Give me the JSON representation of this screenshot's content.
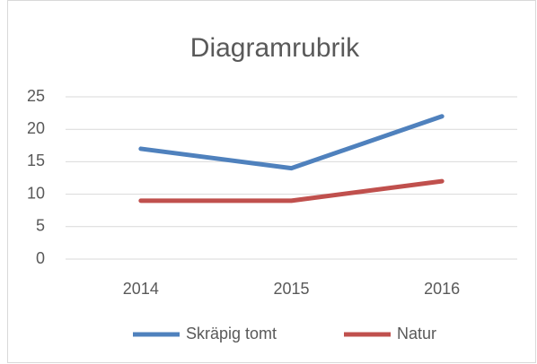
{
  "chart_data": {
    "type": "line",
    "title": "Diagramrubrik",
    "categories": [
      "2014",
      "2015",
      "2016"
    ],
    "series": [
      {
        "name": "Skräpig tomt",
        "color": "#4f81bd",
        "values": [
          17,
          14,
          22
        ]
      },
      {
        "name": "Natur",
        "color": "#c0504d",
        "values": [
          9,
          9,
          12
        ]
      }
    ],
    "ylim": [
      0,
      25
    ],
    "yticks": [
      0,
      5,
      10,
      15,
      20,
      25
    ],
    "grid": true,
    "legend": "bottom"
  }
}
